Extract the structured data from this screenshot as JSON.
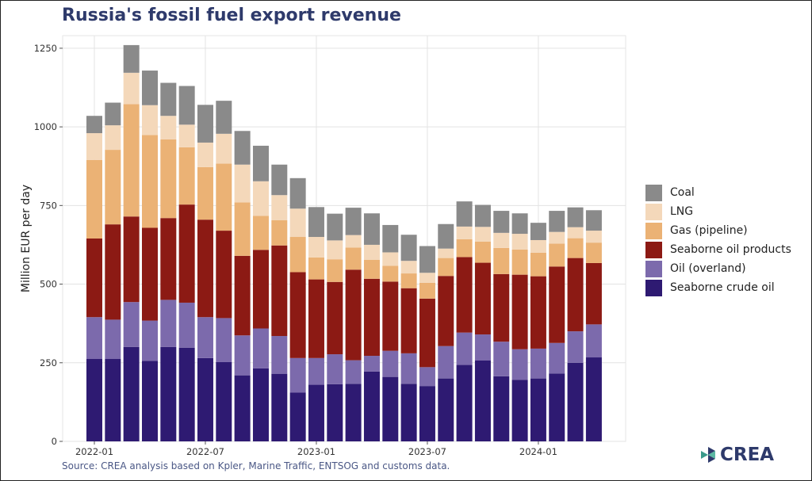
{
  "colors": {
    "seaborne_crude_oil": "#2e1a72",
    "oil_overland": "#7c6aac",
    "seaborne_oil_products": "#8c1a14",
    "gas_pipeline": "#ebb275",
    "lng": "#f4d8ba",
    "coal": "#8a8a8a"
  },
  "chart_data": {
    "type": "bar",
    "stacked": true,
    "title": "Russia's fossil fuel export revenue",
    "xlabel": "",
    "ylabel": "Million EUR per day",
    "ylim": [
      0,
      1290
    ],
    "yticks": [
      0,
      250,
      500,
      750,
      1000,
      1250
    ],
    "grid": true,
    "legend_position": "right",
    "categories": [
      "2022-01",
      "2022-02",
      "2022-03",
      "2022-04",
      "2022-05",
      "2022-06",
      "2022-07",
      "2022-08",
      "2022-09",
      "2022-10",
      "2022-11",
      "2022-12",
      "2023-01",
      "2023-02",
      "2023-03",
      "2023-04",
      "2023-05",
      "2023-06",
      "2023-07",
      "2023-08",
      "2023-09",
      "2023-10",
      "2023-11",
      "2023-12",
      "2024-01",
      "2024-02",
      "2024-03",
      "2024-04"
    ],
    "xtick_labels": [
      {
        "category": "2022-01",
        "label": "2022-01"
      },
      {
        "category": "2022-07",
        "label": "2022-07"
      },
      {
        "category": "2023-01",
        "label": "2023-01"
      },
      {
        "category": "2023-07",
        "label": "2023-07"
      },
      {
        "category": "2024-01",
        "label": "2024-01"
      }
    ],
    "series": [
      {
        "key": "seaborne_crude_oil",
        "name": "Seaborne crude oil",
        "values": [
          262,
          262,
          300,
          256,
          300,
          298,
          265,
          252,
          210,
          232,
          215,
          155,
          180,
          182,
          183,
          222,
          205,
          183,
          176,
          200,
          243,
          257,
          207,
          196,
          200,
          216,
          250,
          267
        ]
      },
      {
        "key": "oil_overland",
        "name": "Oil (overland)",
        "values": [
          133,
          125,
          143,
          128,
          150,
          143,
          130,
          140,
          127,
          127,
          120,
          110,
          85,
          95,
          75,
          50,
          83,
          97,
          60,
          103,
          103,
          83,
          110,
          97,
          95,
          97,
          100,
          105
        ]
      },
      {
        "key": "seaborne_oil_products",
        "name": "Seaborne oil products",
        "values": [
          250,
          303,
          272,
          295,
          260,
          312,
          310,
          278,
          253,
          250,
          288,
          273,
          250,
          230,
          288,
          245,
          220,
          207,
          218,
          223,
          240,
          228,
          215,
          237,
          230,
          243,
          233,
          195
        ]
      },
      {
        "key": "gas_pipeline",
        "name": "Gas (pipeline)",
        "values": [
          250,
          237,
          357,
          295,
          250,
          182,
          167,
          213,
          170,
          108,
          80,
          112,
          70,
          72,
          70,
          60,
          50,
          47,
          50,
          57,
          57,
          67,
          83,
          80,
          75,
          73,
          63,
          65
        ]
      },
      {
        "key": "lng",
        "name": "LNG",
        "values": [
          85,
          78,
          100,
          95,
          75,
          72,
          78,
          95,
          120,
          110,
          80,
          90,
          65,
          60,
          40,
          48,
          43,
          40,
          32,
          30,
          40,
          47,
          48,
          50,
          40,
          37,
          35,
          38
        ]
      },
      {
        "key": "coal",
        "name": "Coal",
        "values": [
          55,
          72,
          88,
          110,
          105,
          123,
          120,
          105,
          107,
          113,
          97,
          97,
          95,
          85,
          87,
          100,
          87,
          83,
          85,
          78,
          80,
          70,
          70,
          65,
          55,
          67,
          63,
          65
        ]
      }
    ],
    "legend_order": [
      "coal",
      "lng",
      "gas_pipeline",
      "seaborne_oil_products",
      "oil_overland",
      "seaborne_crude_oil"
    ]
  },
  "source_note": "Source: CREA analysis based on Kpler, Marine Traffic, ENTSOG and customs data.",
  "logo": {
    "text": "CREA",
    "icon": "crea-logo-icon"
  }
}
